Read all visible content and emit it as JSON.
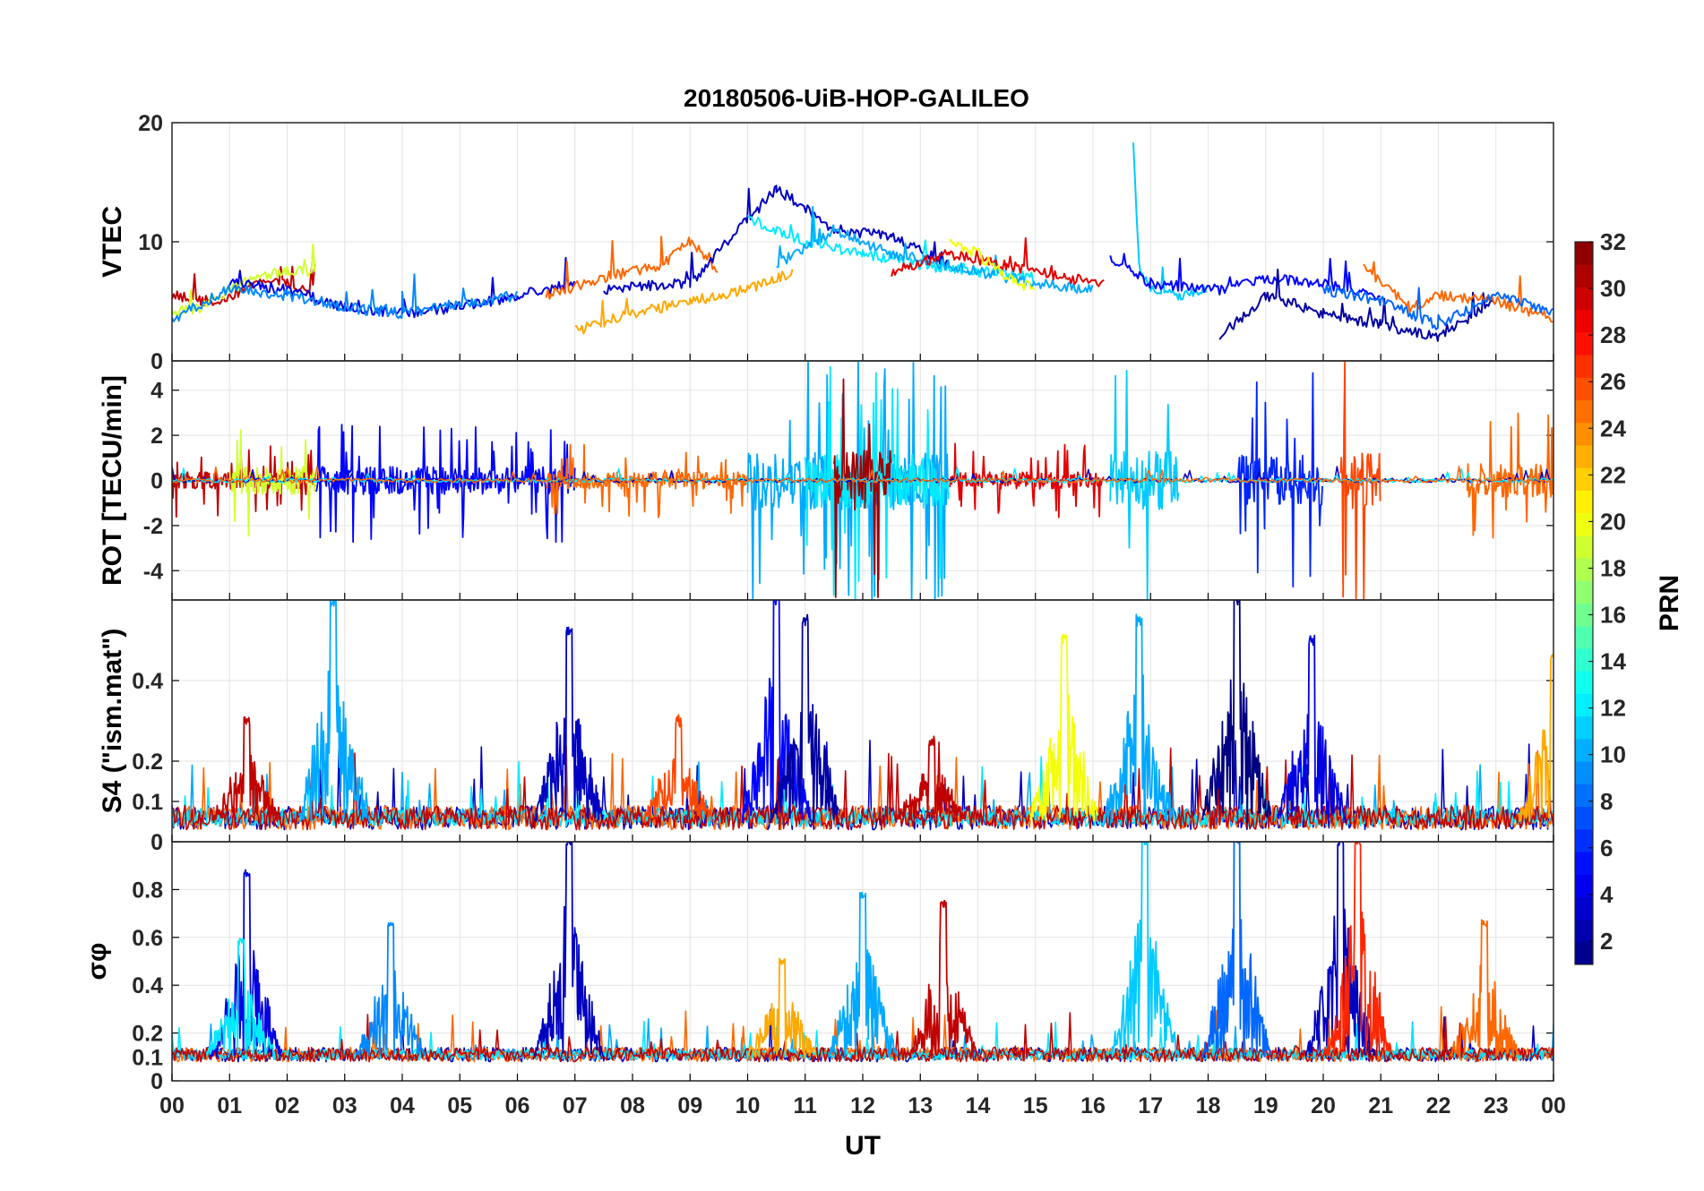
{
  "title": "20180506-UiB-HOP-GALILEO",
  "chart_data": [
    {
      "panel": "vtec",
      "type": "line",
      "title": "20180506-UiB-HOP-GALILEO",
      "ylabel": "VTEC",
      "ylim": [
        0,
        20
      ],
      "yticks": [
        0,
        10,
        20
      ],
      "ytick_labels": [
        "0",
        "10",
        "20"
      ],
      "grid": true,
      "series": [
        {
          "prn": 30,
          "x": [
            0,
            0.5,
            1.0,
            1.5,
            2.0,
            2.5
          ],
          "y": [
            5.5,
            5.0,
            5.2,
            6.5,
            6.5,
            6.0
          ]
        },
        {
          "prn": 19,
          "x": [
            0,
            0.5,
            1.0,
            1.5,
            2.0,
            2.5
          ],
          "y": [
            4.0,
            4.5,
            6.0,
            7.0,
            7.5,
            7.5
          ]
        },
        {
          "prn": 4,
          "x": [
            1.0,
            2.0,
            3.0,
            4.0,
            5.0,
            6.0,
            7.0
          ],
          "y": [
            6.5,
            6.0,
            4.5,
            4.0,
            4.5,
            5.5,
            6.5
          ]
        },
        {
          "prn": 9,
          "x": [
            0,
            1.0,
            2.0,
            3.0,
            4.0,
            5.0,
            6.0
          ],
          "y": [
            3.5,
            6.0,
            5.5,
            4.5,
            4.0,
            4.8,
            5.5
          ]
        },
        {
          "prn": 25,
          "x": [
            6.5,
            7.5,
            8.5,
            9.0,
            9.5
          ],
          "y": [
            5.5,
            7.0,
            8.0,
            10.0,
            7.5
          ]
        },
        {
          "prn": 23,
          "x": [
            7.0,
            8.0,
            9.0,
            10.0,
            10.8
          ],
          "y": [
            2.5,
            4.0,
            5.0,
            6.0,
            7.5
          ]
        },
        {
          "prn": 3,
          "x": [
            7.5,
            9.0,
            10.5,
            11.5,
            12.5,
            13.5
          ],
          "y": [
            6.0,
            6.5,
            14.5,
            11.0,
            10.5,
            8.0
          ]
        },
        {
          "prn": 12,
          "x": [
            10.0,
            11.0,
            12.0,
            13.0,
            14.0,
            15.0
          ],
          "y": [
            12.0,
            10.0,
            9.0,
            8.0,
            7.5,
            7.0
          ]
        },
        {
          "prn": 10,
          "x": [
            10.5,
            11.5,
            12.5,
            13.5,
            15.0,
            16.0
          ],
          "y": [
            8.0,
            11.0,
            9.0,
            8.0,
            6.5,
            6.0
          ]
        },
        {
          "prn": 29,
          "x": [
            12.5,
            13.5,
            14.5,
            15.5,
            16.2
          ],
          "y": [
            7.5,
            9.0,
            8.0,
            7.0,
            6.5
          ]
        },
        {
          "prn": 20,
          "x": [
            13.5,
            14.0,
            14.5,
            15.0
          ],
          "y": [
            10.0,
            9.0,
            7.0,
            6.0
          ]
        },
        {
          "prn": 11,
          "x": [
            16.7,
            16.8,
            17.0,
            17.5,
            18.0
          ],
          "y": [
            18.0,
            8.0,
            6.0,
            5.5,
            6.0
          ]
        },
        {
          "prn": 5,
          "x": [
            16.3,
            17.0,
            18.2,
            19.0,
            20.0,
            21.0
          ],
          "y": [
            8.5,
            6.5,
            6.0,
            7.0,
            6.5,
            5.5
          ]
        },
        {
          "prn": 2,
          "x": [
            18.2,
            19.0,
            20.0,
            21.0,
            22.0,
            23.0
          ],
          "y": [
            2.0,
            5.5,
            4.0,
            3.0,
            2.0,
            5.0
          ]
        },
        {
          "prn": 25,
          "x": [
            20.7,
            21.5,
            22.0,
            23.0,
            24.0
          ],
          "y": [
            8.0,
            4.5,
            5.5,
            5.0,
            3.5
          ]
        },
        {
          "prn": 8,
          "x": [
            20.0,
            21.0,
            22.0,
            23.0,
            24.0
          ],
          "y": [
            6.0,
            5.0,
            3.0,
            5.5,
            4.0
          ]
        }
      ]
    },
    {
      "panel": "rot",
      "type": "line",
      "ylabel": "ROT [TECU/min]",
      "ylim": [
        -5.3,
        5.3
      ],
      "yticks": [
        -4,
        -2,
        0,
        2,
        4
      ],
      "ytick_labels": [
        "-4",
        "-2",
        "0",
        "2",
        "4"
      ],
      "grid": true,
      "bursts": [
        {
          "x": [
            0,
            2.5
          ],
          "amp": 1.5,
          "prn": 30
        },
        {
          "x": [
            1.0,
            2.5
          ],
          "amp": 2.5,
          "prn": 19
        },
        {
          "x": [
            2.5,
            7.0
          ],
          "amp": 2.5,
          "prn": 5
        },
        {
          "x": [
            6.5,
            10.0
          ],
          "amp": 1.5,
          "prn": 25
        },
        {
          "x": [
            10.0,
            13.5
          ],
          "amp": 5.3,
          "prn": 10
        },
        {
          "x": [
            11.0,
            13.5
          ],
          "amp": 5.0,
          "prn": 12
        },
        {
          "x": [
            11.5,
            12.5
          ],
          "amp": 5.3,
          "prn": 31
        },
        {
          "x": [
            13.5,
            16.2
          ],
          "amp": 1.5,
          "prn": 29
        },
        {
          "x": [
            16.3,
            17.5
          ],
          "amp": 5.3,
          "prn": 11
        },
        {
          "x": [
            18.5,
            20.0
          ],
          "amp": 4.5,
          "prn": 6
        },
        {
          "x": [
            20.3,
            21.0
          ],
          "amp": 5.0,
          "prn": 26
        },
        {
          "x": [
            22.5,
            24.0
          ],
          "amp": 3.0,
          "prn": 25
        }
      ]
    },
    {
      "panel": "s4",
      "type": "line",
      "ylabel": "S4 (\"ism.mat\")",
      "ylim": [
        0,
        0.6
      ],
      "yticks": [
        0,
        0.1,
        0.2,
        0.4
      ],
      "ytick_labels": [
        "0",
        "0.1",
        "0.2",
        "0.4"
      ],
      "grid": true,
      "peaks": [
        {
          "x": 1.3,
          "y": 0.3,
          "prn": 30
        },
        {
          "x": 2.8,
          "y": 0.6,
          "prn": 10
        },
        {
          "x": 6.9,
          "y": 0.52,
          "prn": 3
        },
        {
          "x": 8.8,
          "y": 0.3,
          "prn": 26
        },
        {
          "x": 10.5,
          "y": 0.6,
          "prn": 5
        },
        {
          "x": 11.0,
          "y": 0.55,
          "prn": 2
        },
        {
          "x": 13.2,
          "y": 0.25,
          "prn": 30
        },
        {
          "x": 15.5,
          "y": 0.5,
          "prn": 20
        },
        {
          "x": 16.8,
          "y": 0.55,
          "prn": 10
        },
        {
          "x": 18.5,
          "y": 0.6,
          "prn": 1
        },
        {
          "x": 19.8,
          "y": 0.5,
          "prn": 4
        },
        {
          "x": 24.0,
          "y": 0.46,
          "prn": 23
        }
      ]
    },
    {
      "panel": "sigma_phi",
      "type": "line",
      "ylabel": "σφ",
      "ylim": [
        0,
        1
      ],
      "yticks": [
        0,
        0.1,
        0.2,
        0.4,
        0.6,
        0.8
      ],
      "ytick_labels": [
        "0",
        "0.1",
        "0.2",
        "0.4",
        "0.6",
        "0.8"
      ],
      "grid": true,
      "xlabel": "UT",
      "xlim": [
        0,
        24
      ],
      "xtick_labels": [
        "00",
        "01",
        "02",
        "03",
        "04",
        "05",
        "06",
        "07",
        "08",
        "09",
        "10",
        "11",
        "12",
        "13",
        "14",
        "15",
        "16",
        "17",
        "18",
        "19",
        "20",
        "21",
        "22",
        "23",
        "00"
      ],
      "peaks": [
        {
          "x": 1.3,
          "y": 0.87,
          "prn": 4
        },
        {
          "x": 1.2,
          "y": 0.58,
          "prn": 12
        },
        {
          "x": 3.8,
          "y": 0.66,
          "prn": 9
        },
        {
          "x": 6.9,
          "y": 1.0,
          "prn": 3
        },
        {
          "x": 10.6,
          "y": 0.5,
          "prn": 23
        },
        {
          "x": 12.0,
          "y": 0.78,
          "prn": 10
        },
        {
          "x": 13.4,
          "y": 0.74,
          "prn": 30
        },
        {
          "x": 16.9,
          "y": 1.0,
          "prn": 11
        },
        {
          "x": 18.5,
          "y": 1.0,
          "prn": 8
        },
        {
          "x": 20.3,
          "y": 1.0,
          "prn": 3
        },
        {
          "x": 20.6,
          "y": 1.0,
          "prn": 27
        },
        {
          "x": 22.8,
          "y": 0.66,
          "prn": 25
        }
      ]
    }
  ],
  "colorbar": {
    "label": "PRN",
    "min": 1,
    "max": 32,
    "ticks": [
      2,
      4,
      6,
      8,
      10,
      12,
      14,
      16,
      18,
      20,
      22,
      24,
      26,
      28,
      30,
      32
    ],
    "tick_labels": [
      "2",
      "4",
      "6",
      "8",
      "10",
      "12",
      "14",
      "16",
      "18",
      "20",
      "22",
      "24",
      "26",
      "28",
      "30",
      "32"
    ],
    "colormap": "jet"
  }
}
